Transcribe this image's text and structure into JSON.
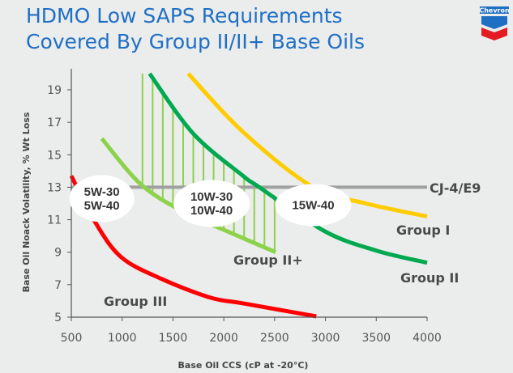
{
  "title_lines": [
    "HDMO Low SAPS Requirements",
    "Covered By Group II/II+ Base Oils"
  ],
  "logo_text": "Chevron",
  "chart_data": {
    "type": "line",
    "title": "HDMO Low SAPS Requirements Covered By Group II/II+ Base Oils",
    "xlabel": "Base Oil CCS (cP at -20°C)",
    "ylabel": "Base Oil Noack Volatility, % Wt Loss",
    "xlim": [
      500,
      4000
    ],
    "ylim": [
      5,
      20
    ],
    "xticks": [
      500,
      1000,
      1500,
      2000,
      2500,
      3000,
      3500,
      4000
    ],
    "yticks": [
      5,
      7,
      9,
      11,
      13,
      15,
      17,
      19
    ],
    "grid": false,
    "series": [
      {
        "name": "Group I",
        "color": "#ffcc00",
        "x": [
          1650,
          2190,
          2880,
          3400,
          4000
        ],
        "y": [
          20,
          16.4,
          13,
          12,
          11.2
        ]
      },
      {
        "name": "Group II",
        "color": "#00a94f",
        "x": [
          1270,
          1700,
          2190,
          2350,
          2990,
          3500,
          4000
        ],
        "y": [
          20,
          16.3,
          13.7,
          13,
          10.3,
          9.1,
          8.35
        ]
      },
      {
        "name": "Group II+",
        "color": "#8cd24a",
        "x": [
          800,
          1180,
          1600,
          2030,
          2510
        ],
        "y": [
          16,
          13.2,
          11.5,
          10.3,
          9
        ]
      },
      {
        "name": "Group III",
        "color": "#ff0000",
        "x": [
          500,
          730,
          990,
          1390,
          1870,
          2190,
          2910
        ],
        "y": [
          13.7,
          10.9,
          8.7,
          7.35,
          6.2,
          5.85,
          5.05
        ]
      }
    ],
    "reference_line": {
      "name": "CJ-4/E9",
      "y": 13,
      "color": "#a0a0a0"
    },
    "hatched_region": {
      "between": [
        "Group II+",
        "Group II"
      ],
      "x_range": [
        1200,
        2500
      ],
      "color": "#8cd24a"
    },
    "annotations": [
      {
        "lines": [
          "5W-30",
          "5W-40"
        ],
        "x": 800,
        "y": 12.3
      },
      {
        "lines": [
          "10W-30",
          "10W-40"
        ],
        "x": 1880,
        "y": 12.0
      },
      {
        "lines": [
          "15W-40"
        ],
        "x": 2880,
        "y": 11.9
      }
    ]
  }
}
